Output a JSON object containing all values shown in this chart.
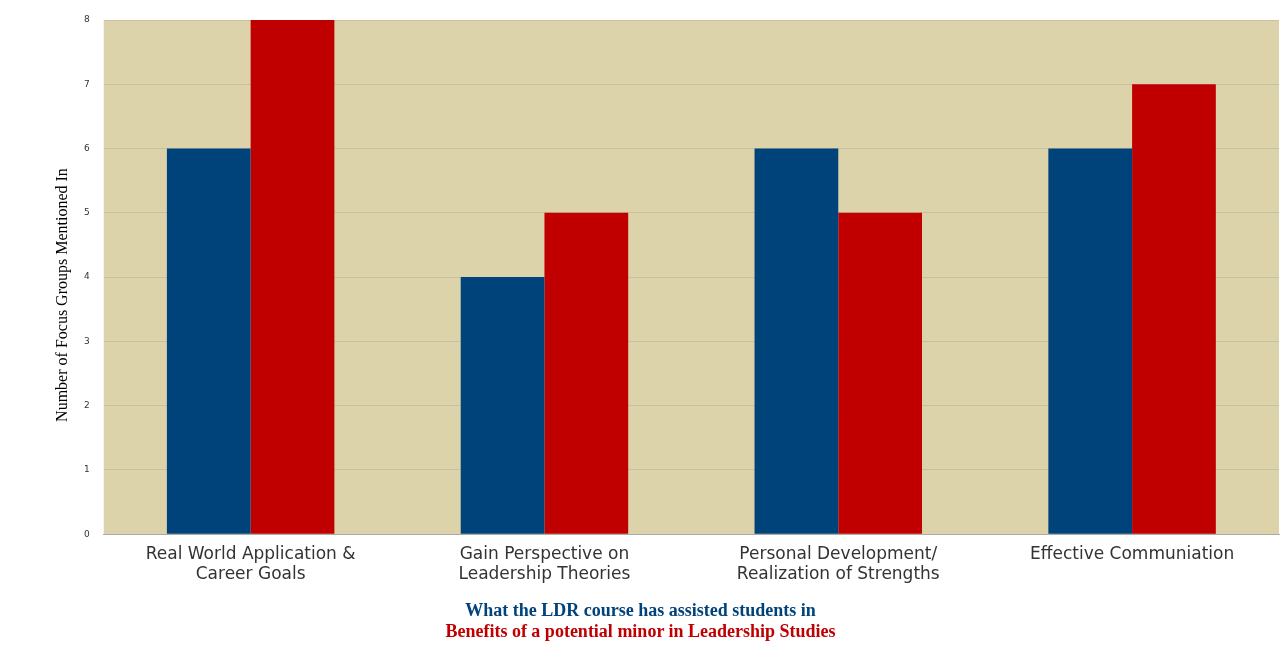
{
  "chart_data": {
    "type": "bar",
    "ylabel": "Number of Focus Groups Mentioned In",
    "categories": [
      "Real World Application & Career Goals",
      "Gain Perspective on Leadership Theories",
      "Personal Development/ Realization of Strengths",
      "Effective Communiation"
    ],
    "series": [
      {
        "name": "What the LDR course has assisted students in",
        "color": "#00427a",
        "values": [
          6,
          4,
          6,
          6
        ]
      },
      {
        "name": "Benefits of a potential minor in Leadership Studies",
        "color": "#c00000",
        "values": [
          8,
          5,
          5,
          7
        ]
      }
    ],
    "ylim": [
      0,
      8
    ],
    "yticks": [
      0,
      1,
      2,
      3,
      4,
      5,
      6,
      7,
      8
    ],
    "grid": "y",
    "legend": "bottom"
  }
}
